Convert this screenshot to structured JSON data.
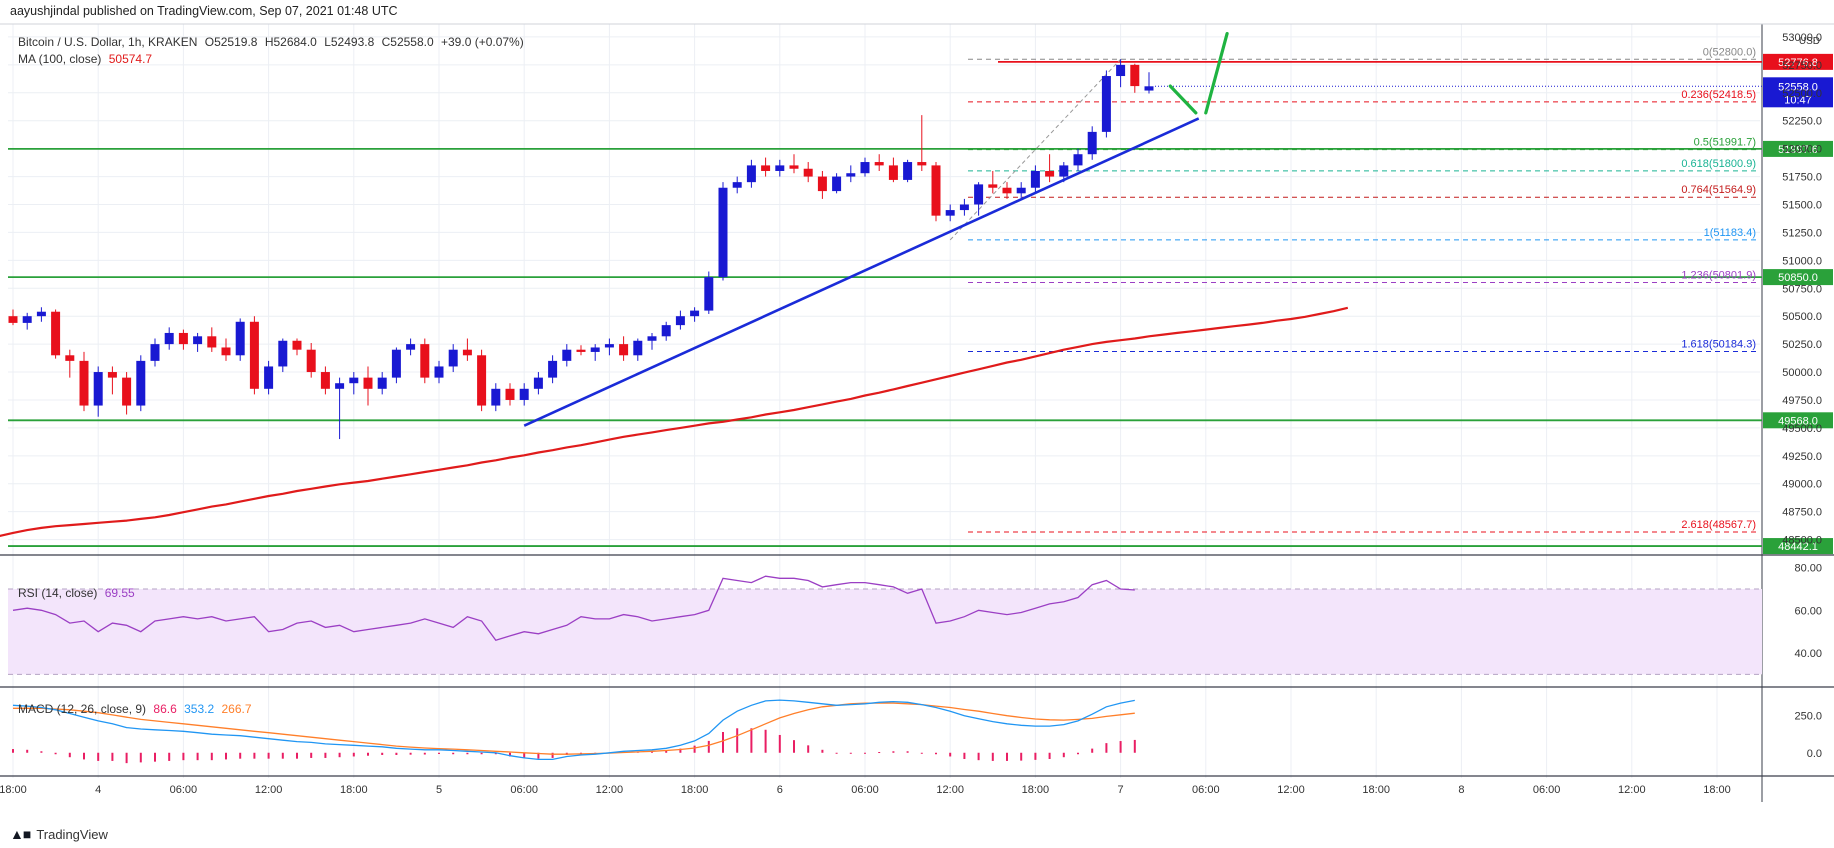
{
  "header": {
    "published": "aayushjindal published on TradingView.com, Sep 07, 2021 01:48 UTC"
  },
  "legend": {
    "symbol": "Bitcoin / U.S. Dollar, 1h, KRAKEN",
    "o": "O52519.8",
    "h": "H52684.0",
    "l": "L52493.8",
    "c": "C52558.0",
    "chg": "+39.0 (+0.07%)",
    "ma_label": "MA (100, close)",
    "ma_value": "50574.7",
    "rsi_label": "RSI (14, close)",
    "rsi_value": "69.55",
    "macd_label": "MACD (12, 26, close, 9)",
    "macd_hist": "86.6",
    "macd_line": "353.2",
    "macd_signal": "266.7"
  },
  "brand": {
    "name": "TradingView"
  },
  "colors": {
    "up": "#1919d2",
    "down": "#e8101c",
    "ma": "#e01b1b",
    "trend": "#1a2bd8",
    "hline": "#2aa13a",
    "rsi": "#9b3fc4",
    "macd": "#2196f3",
    "signal": "#ff7f2a",
    "hist": "#e91e63"
  },
  "chart_data": {
    "type": "candlestick",
    "title": "Bitcoin / U.S. Dollar, 1h, KRAKEN",
    "currency": "USD",
    "ylim": [
      48380,
      53080
    ],
    "y_ticks": [
      48500,
      48750,
      49000,
      49250,
      49500,
      49750,
      50000,
      50250,
      50500,
      50750,
      51000,
      51250,
      51500,
      51750,
      52000,
      52250,
      52500,
      52750,
      53000
    ],
    "y_tick_labels": [
      "48500.0",
      "48750.0",
      "49000.0",
      "49250.0",
      "49500.0",
      "49750.0",
      "50000.0",
      "50250.0",
      "50500.0",
      "50750.0",
      "51000.0",
      "51250.0",
      "51500.0",
      "51750.0",
      "52000.0",
      "52250.0",
      "52500.0",
      "52750.0",
      "53000.0"
    ],
    "x_ticks": [
      {
        "label": "18:00",
        "bar": 0
      },
      {
        "label": "4",
        "bar": 6
      },
      {
        "label": "06:00",
        "bar": 12
      },
      {
        "label": "12:00",
        "bar": 18
      },
      {
        "label": "18:00",
        "bar": 24
      },
      {
        "label": "5",
        "bar": 30
      },
      {
        "label": "06:00",
        "bar": 36
      },
      {
        "label": "12:00",
        "bar": 42
      },
      {
        "label": "18:00",
        "bar": 48
      },
      {
        "label": "6",
        "bar": 54
      },
      {
        "label": "06:00",
        "bar": 60
      },
      {
        "label": "12:00",
        "bar": 66
      },
      {
        "label": "18:00",
        "bar": 72
      },
      {
        "label": "7",
        "bar": 78
      },
      {
        "label": "06:00",
        "bar": 84
      },
      {
        "label": "12:00",
        "bar": 90
      },
      {
        "label": "18:00",
        "bar": 96
      },
      {
        "label": "8",
        "bar": 102
      },
      {
        "label": "06:00",
        "bar": 108
      },
      {
        "label": "12:00",
        "bar": 114
      },
      {
        "label": "18:00",
        "bar": 120
      }
    ],
    "candles": [
      [
        50500,
        50560,
        50420,
        50440
      ],
      [
        50440,
        50530,
        50380,
        50500
      ],
      [
        50500,
        50580,
        50450,
        50540
      ],
      [
        50540,
        50560,
        50120,
        50150
      ],
      [
        50150,
        50200,
        49950,
        50100
      ],
      [
        50100,
        50180,
        49650,
        49700
      ],
      [
        49700,
        50050,
        49600,
        50000
      ],
      [
        50000,
        50050,
        49800,
        49950
      ],
      [
        49950,
        50000,
        49620,
        49700
      ],
      [
        49700,
        50150,
        49650,
        50100
      ],
      [
        50100,
        50300,
        50050,
        50250
      ],
      [
        50250,
        50400,
        50200,
        50350
      ],
      [
        50350,
        50380,
        50200,
        50250
      ],
      [
        50250,
        50350,
        50180,
        50320
      ],
      [
        50320,
        50400,
        50180,
        50220
      ],
      [
        50220,
        50300,
        50100,
        50150
      ],
      [
        50150,
        50480,
        50100,
        50450
      ],
      [
        50450,
        50500,
        49800,
        49850
      ],
      [
        49850,
        50100,
        49800,
        50050
      ],
      [
        50050,
        50300,
        50000,
        50280
      ],
      [
        50280,
        50300,
        50150,
        50200
      ],
      [
        50200,
        50260,
        49950,
        50000
      ],
      [
        50000,
        50050,
        49800,
        49850
      ],
      [
        49850,
        49950,
        49400,
        49900
      ],
      [
        49900,
        50000,
        49800,
        49950
      ],
      [
        49950,
        50050,
        49700,
        49850
      ],
      [
        49850,
        50000,
        49800,
        49950
      ],
      [
        49950,
        50220,
        49900,
        50200
      ],
      [
        50200,
        50300,
        50150,
        50250
      ],
      [
        50250,
        50300,
        49900,
        49950
      ],
      [
        49950,
        50100,
        49900,
        50050
      ],
      [
        50050,
        50250,
        50000,
        50200
      ],
      [
        50200,
        50300,
        50100,
        50150
      ],
      [
        50150,
        50200,
        49650,
        49700
      ],
      [
        49700,
        49900,
        49650,
        49850
      ],
      [
        49850,
        49900,
        49700,
        49750
      ],
      [
        49750,
        49900,
        49700,
        49850
      ],
      [
        49850,
        50000,
        49800,
        49950
      ],
      [
        49950,
        50150,
        49900,
        50100
      ],
      [
        50100,
        50250,
        50050,
        50200
      ],
      [
        50200,
        50240,
        50150,
        50180
      ],
      [
        50180,
        50250,
        50100,
        50220
      ],
      [
        50220,
        50300,
        50150,
        50250
      ],
      [
        50250,
        50320,
        50100,
        50150
      ],
      [
        50150,
        50300,
        50100,
        50280
      ],
      [
        50280,
        50350,
        50200,
        50320
      ],
      [
        50320,
        50450,
        50280,
        50420
      ],
      [
        50420,
        50550,
        50380,
        50500
      ],
      [
        50500,
        50580,
        50450,
        50550
      ],
      [
        50550,
        50900,
        50520,
        50850
      ],
      [
        50850,
        51700,
        50820,
        51650
      ],
      [
        51650,
        51750,
        51600,
        51700
      ],
      [
        51700,
        51900,
        51650,
        51850
      ],
      [
        51850,
        51920,
        51750,
        51800
      ],
      [
        51800,
        51900,
        51750,
        51850
      ],
      [
        51850,
        51950,
        51780,
        51820
      ],
      [
        51820,
        51880,
        51700,
        51750
      ],
      [
        51750,
        51800,
        51550,
        51620
      ],
      [
        51620,
        51780,
        51600,
        51750
      ],
      [
        51750,
        51850,
        51700,
        51780
      ],
      [
        51780,
        51920,
        51750,
        51880
      ],
      [
        51880,
        51950,
        51800,
        51850
      ],
      [
        51850,
        51920,
        51700,
        51720
      ],
      [
        51720,
        51900,
        51700,
        51880
      ],
      [
        51880,
        52300,
        51800,
        51850
      ],
      [
        51850,
        51880,
        51350,
        51400
      ],
      [
        51400,
        51500,
        51350,
        51450
      ],
      [
        51450,
        51550,
        51400,
        51500
      ],
      [
        51500,
        51700,
        51400,
        51680
      ],
      [
        51680,
        51800,
        51600,
        51650
      ],
      [
        51650,
        51700,
        51550,
        51600
      ],
      [
        51600,
        51700,
        51550,
        51650
      ],
      [
        51650,
        51850,
        51600,
        51800
      ],
      [
        51800,
        51950,
        51700,
        51750
      ],
      [
        51750,
        51880,
        51700,
        51850
      ],
      [
        51850,
        52000,
        51800,
        51950
      ],
      [
        51950,
        52200,
        51900,
        52150
      ],
      [
        52150,
        52700,
        52100,
        52650
      ],
      [
        52650,
        52800,
        52550,
        52750
      ],
      [
        52750,
        52760,
        52500,
        52560
      ],
      [
        52520,
        52684,
        52494,
        52558
      ]
    ],
    "ma_100": [
      48530,
      48560,
      48585,
      48605,
      48620,
      48630,
      48640,
      48650,
      48660,
      48670,
      48685,
      48700,
      48720,
      48745,
      48770,
      48795,
      48815,
      48840,
      48865,
      48890,
      48910,
      48935,
      48955,
      48975,
      48995,
      49010,
      49025,
      49045,
      49065,
      49085,
      49105,
      49125,
      49145,
      49165,
      49190,
      49210,
      49235,
      49255,
      49280,
      49300,
      49325,
      49345,
      49370,
      49395,
      49420,
      49440,
      49460,
      49480,
      49500,
      49520,
      49540,
      49555,
      49575,
      49595,
      49620,
      49640,
      49660,
      49685,
      49710,
      49735,
      49760,
      49790,
      49815,
      49845,
      49875,
      49905,
      49935,
      49965,
      49995,
      50025,
      50055,
      50085,
      50110,
      50140,
      50170,
      50200,
      50225,
      50250,
      50270,
      50285,
      50300,
      50320,
      50335,
      50350,
      50365,
      50380,
      50395,
      50410,
      50425,
      50440,
      50460,
      50475,
      50495,
      50520,
      50545,
      50575
    ],
    "ma_start_bar": -1,
    "horizontal_levels": [
      {
        "price": 49568.0,
        "label": "49568.0"
      },
      {
        "price": 50850.0,
        "label": "50850.0"
      },
      {
        "price": 51997.6,
        "label": "51997.6"
      },
      {
        "price": 48442.1,
        "label": "48442.1"
      }
    ],
    "resistance": {
      "price": 52776.8,
      "label": "52776.8"
    },
    "last_price": {
      "price": 52558.0,
      "label": "52558.0",
      "countdown": "10:47"
    },
    "fib_levels": [
      {
        "text": "0(52800.0)",
        "price": 52800.0,
        "color": "#888888"
      },
      {
        "text": "0.236(52418.5)",
        "price": 52418.5,
        "color": "#e8101c"
      },
      {
        "text": "0.5(51991.7)",
        "price": 51991.7,
        "color": "#2aa13a"
      },
      {
        "text": "0.618(51800.9)",
        "price": 51800.9,
        "color": "#1ab394"
      },
      {
        "text": "0.764(51564.9)",
        "price": 51564.9,
        "color": "#c41c1c"
      },
      {
        "text": "1(51183.4)",
        "price": 51183.4,
        "color": "#2196f3"
      },
      {
        "text": "1.236(50801.9)",
        "price": 50801.9,
        "color": "#9b3fc4"
      },
      {
        "text": "1.618(50184.3)",
        "price": 50184.3,
        "color": "#1a2bd8"
      },
      {
        "text": "2.618(48567.7)",
        "price": 48567.7,
        "color": "#e8101c"
      }
    ],
    "trendline": {
      "from": {
        "bar": 36,
        "price": 49520
      },
      "to": {
        "bar": 83.5,
        "price": 52270
      }
    },
    "projection": [
      {
        "from": {
          "bar": 81.5,
          "price": 52560
        },
        "to": {
          "bar": 83.3,
          "price": 52320
        }
      },
      {
        "from": {
          "bar": 84,
          "price": 52320
        },
        "to": {
          "bar": 85.5,
          "price": 53030
        }
      }
    ],
    "rsi": {
      "ylim": [
        25,
        85
      ],
      "ticks": [
        40,
        60,
        80
      ],
      "tick_labels": [
        "40.00",
        "60.00",
        "80.00"
      ],
      "bands": [
        30,
        70
      ],
      "values": [
        60,
        61,
        60,
        58,
        54,
        55,
        50,
        54,
        53,
        50,
        55,
        56,
        57,
        56,
        57,
        55,
        56,
        57,
        50,
        51,
        54,
        55,
        52,
        53,
        50,
        51,
        52,
        53,
        54,
        56,
        54,
        52,
        57,
        55,
        46,
        48,
        50,
        49,
        51,
        53,
        57,
        56,
        56,
        58,
        57,
        55,
        56,
        57,
        58,
        60,
        75,
        74,
        73,
        76,
        75,
        75,
        74,
        71,
        72,
        73,
        73,
        72,
        71,
        68,
        70,
        54,
        55,
        57,
        60,
        59,
        58,
        59,
        61,
        63,
        64,
        66,
        72,
        74,
        70,
        69.55
      ]
    },
    "macd": {
      "ylim": [
        -150,
        430
      ],
      "ticks": [
        0,
        250
      ],
      "tick_labels": [
        "0.0",
        "250.0"
      ],
      "macd_values": [
        320,
        315,
        305,
        290,
        265,
        240,
        215,
        195,
        170,
        160,
        155,
        150,
        145,
        135,
        125,
        120,
        115,
        105,
        95,
        85,
        75,
        70,
        60,
        55,
        50,
        45,
        40,
        30,
        25,
        20,
        20,
        15,
        10,
        5,
        0,
        -20,
        -35,
        -45,
        -45,
        -25,
        -15,
        -10,
        0,
        10,
        15,
        20,
        30,
        50,
        80,
        130,
        220,
        280,
        320,
        350,
        355,
        350,
        340,
        330,
        320,
        325,
        330,
        340,
        345,
        340,
        325,
        305,
        280,
        250,
        230,
        210,
        195,
        185,
        180,
        180,
        190,
        215,
        260,
        310,
        335,
        353.2
      ],
      "signal_values": [
        300,
        300,
        300,
        295,
        290,
        280,
        270,
        255,
        240,
        225,
        215,
        205,
        195,
        185,
        175,
        165,
        155,
        145,
        135,
        125,
        115,
        105,
        95,
        85,
        75,
        65,
        55,
        45,
        38,
        32,
        28,
        25,
        20,
        15,
        10,
        5,
        0,
        -5,
        -10,
        -10,
        -8,
        -5,
        -2,
        2,
        6,
        10,
        15,
        22,
        32,
        50,
        80,
        115,
        155,
        195,
        235,
        265,
        290,
        310,
        320,
        330,
        335,
        335,
        335,
        330,
        325,
        315,
        305,
        292,
        280,
        265,
        250,
        238,
        228,
        222,
        220,
        225,
        232,
        245,
        256,
        266.7
      ],
      "hist_values": [
        25,
        20,
        10,
        -10,
        -30,
        -45,
        -55,
        -55,
        -70,
        -65,
        -60,
        -55,
        -50,
        -50,
        -50,
        -45,
        -40,
        -40,
        -40,
        -40,
        -40,
        -35,
        -35,
        -30,
        -25,
        -20,
        -15,
        -15,
        -13,
        -12,
        -8,
        -10,
        -10,
        -10,
        -10,
        -25,
        -35,
        -40,
        -35,
        -15,
        -7,
        -5,
        2,
        8,
        9,
        10,
        15,
        28,
        48,
        80,
        140,
        165,
        165,
        155,
        120,
        85,
        50,
        20,
        0,
        -5,
        -5,
        5,
        10,
        10,
        0,
        -10,
        -25,
        -42,
        -50,
        -55,
        -55,
        -53,
        -48,
        -42,
        -30,
        -10,
        28,
        65,
        79,
        86.6
      ]
    },
    "total_bars": 128
  }
}
